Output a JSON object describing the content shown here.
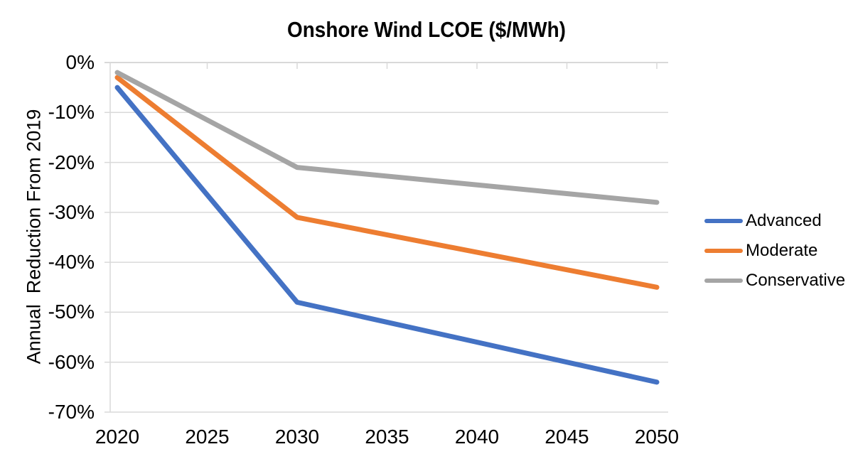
{
  "chart": {
    "title": "Onshore Wind LCOE ($/MWh)"
  },
  "chart_data": {
    "type": "line",
    "title": "Onshore Wind LCOE ($/MWh)",
    "xlabel": "",
    "ylabel": "Annual  Reduction From 2019",
    "x": [
      2020,
      2030,
      2050
    ],
    "x_axis_ticks": [
      2020,
      2025,
      2030,
      2035,
      2040,
      2045,
      2050
    ],
    "y_ticks": [
      "0%",
      "-10%",
      "-20%",
      "-30%",
      "-40%",
      "-50%",
      "-60%",
      "-70%"
    ],
    "ylim": [
      -70,
      0
    ],
    "unit": "percent reduction",
    "grid": "horizontal",
    "legend_position": "right",
    "series": [
      {
        "name": "Advanced",
        "color": "#4472C4",
        "values": [
          -5,
          -48,
          -64
        ]
      },
      {
        "name": "Moderate",
        "color": "#ED7D31",
        "values": [
          -3,
          -31,
          -45
        ]
      },
      {
        "name": "Conservative",
        "color": "#A5A5A5",
        "values": [
          -2,
          -21,
          -28
        ]
      }
    ],
    "gridline_color": "#D9D9D9",
    "axis_line_color": "#D9D9D9",
    "text_color": "#000000"
  }
}
